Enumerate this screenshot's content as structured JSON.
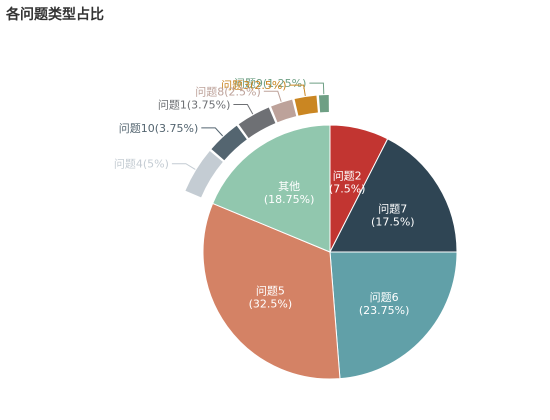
{
  "title": "各问题类型占比",
  "chart_data": [
    {
      "type": "pie",
      "role": "inner",
      "slices": [
        {
          "name": "问题2",
          "value": 7.5,
          "label": "问题2",
          "pct": "(7.5%)",
          "color": "#c23531"
        },
        {
          "name": "问题7",
          "value": 17.5,
          "label": "问题7",
          "pct": "(17.5%)",
          "color": "#2f4554"
        },
        {
          "name": "问题6",
          "value": 23.75,
          "label": "问题6",
          "pct": "(23.75%)",
          "color": "#61a0a8"
        },
        {
          "name": "问题5",
          "value": 32.5,
          "label": "问题5",
          "pct": "(32.5%)",
          "color": "#d48265"
        },
        {
          "name": "其他",
          "value": 18.75,
          "label": "其他",
          "pct": "(18.75%)",
          "color": "#91c7ae"
        }
      ]
    },
    {
      "type": "pie",
      "role": "outer-ring-breakdown-of-其他",
      "slices": [
        {
          "name": "问题9",
          "value": 1.25,
          "label": "问题9(1.25%)",
          "color": "#6e9f84"
        },
        {
          "name": "问题3",
          "value": 2.5,
          "label": "问题3(2.5%)",
          "color": "#ca8622"
        },
        {
          "name": "问题8",
          "value": 2.5,
          "label": "问题8(2.5%)",
          "color": "#bda29a"
        },
        {
          "name": "问题1",
          "value": 3.75,
          "label": "问题1(3.75%)",
          "color": "#6e7074"
        },
        {
          "name": "问题10",
          "value": 3.75,
          "label": "问题10(3.75%)",
          "color": "#546570"
        },
        {
          "name": "问题4",
          "value": 5,
          "label": "问题4(5%)",
          "color": "#c4ccd3"
        }
      ]
    }
  ]
}
